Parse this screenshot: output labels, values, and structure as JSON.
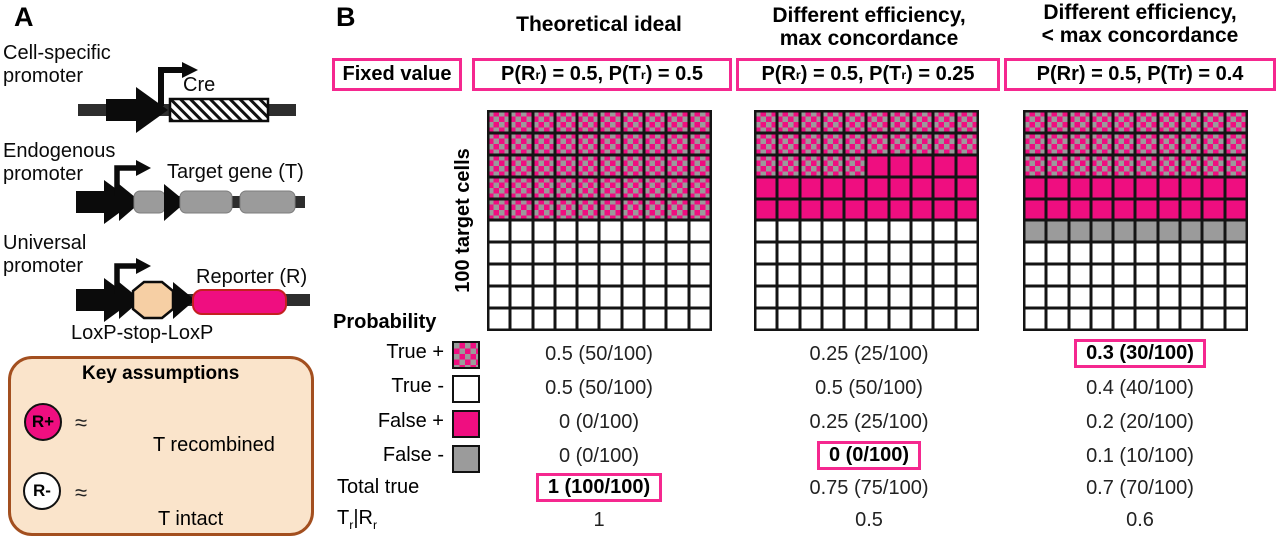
{
  "colors": {
    "pink": "#EF0E80",
    "gray": "#9B9B9B",
    "box_border": "#F5288F",
    "assumption_bg": "#FAE4CB",
    "assumption_border": "#A34F1F",
    "stop_octagon": "#F6CFA4",
    "reporter_border": "#C42020",
    "bar_dark": "#2D2D2D"
  },
  "panel_a": {
    "label": "A",
    "constructs": [
      {
        "promoter_lines": [
          "Cell-specific",
          "promoter"
        ],
        "gene_label": "Cre"
      },
      {
        "promoter_lines": [
          "Endogenous",
          "promoter"
        ],
        "gene_label": "Target gene (T)"
      },
      {
        "promoter_lines": [
          "Universal",
          "promoter"
        ],
        "gene_label": "Reporter (R)",
        "caption": "LoxP-stop-LoxP"
      }
    ],
    "key_assumptions": {
      "title": "Key assumptions",
      "rows": [
        {
          "badge": "R+",
          "approx": "≈",
          "caption": "T recombined"
        },
        {
          "badge": "R-",
          "approx": "≈",
          "caption": "T intact"
        }
      ]
    }
  },
  "panel_b": {
    "label": "B",
    "fixed_value_label": "Fixed value",
    "row_header": "100 target cells",
    "probability_label": "Probability",
    "legend_labels": [
      "True +",
      "True -",
      "False +",
      "False -",
      "Total true"
    ],
    "tr_given_rr_rich": [
      [
        "T",
        0
      ],
      [
        "r",
        1
      ],
      [
        "|R",
        0
      ],
      [
        "r",
        1
      ]
    ],
    "columns": [
      {
        "title_lines": [
          "Theoretical ideal",
          ""
        ],
        "fixed_rich": [
          [
            "P(R",
            0
          ],
          [
            "r",
            1
          ],
          [
            ") = 0.5, P(T",
            0
          ],
          [
            "r",
            1
          ],
          [
            ") = 0.5",
            0
          ]
        ],
        "grid": [
          {
            "type": "true_pos",
            "count": 50
          },
          {
            "type": "true_neg",
            "count": 50
          }
        ],
        "rows": [
          {
            "value": "0.5 (50/100)",
            "boxed": false
          },
          {
            "value": "0.5 (50/100)",
            "boxed": false
          },
          {
            "value": "0 (0/100)",
            "boxed": false
          },
          {
            "value": "0 (0/100)",
            "boxed": false
          },
          {
            "value": "1 (100/100)",
            "boxed": true
          },
          {
            "value": "1",
            "boxed": false
          }
        ]
      },
      {
        "title_lines": [
          "Different efficiency,",
          "max concordance"
        ],
        "fixed_rich": [
          [
            "P(R",
            0
          ],
          [
            "r",
            1
          ],
          [
            ") = 0.5, P(T",
            0
          ],
          [
            "r",
            1
          ],
          [
            ") = 0.25",
            0
          ]
        ],
        "grid": [
          {
            "type": "true_pos",
            "count": 25
          },
          {
            "type": "false_pos",
            "count": 25
          },
          {
            "type": "true_neg",
            "count": 50
          }
        ],
        "rows": [
          {
            "value": "0.25 (25/100)",
            "boxed": false
          },
          {
            "value": "0.5 (50/100)",
            "boxed": false
          },
          {
            "value": "0.25 (25/100)",
            "boxed": false
          },
          {
            "value": "0 (0/100)",
            "boxed": true
          },
          {
            "value": "0.75 (75/100)",
            "boxed": false
          },
          {
            "value": "0.5",
            "boxed": false
          }
        ]
      },
      {
        "title_lines": [
          "Different efficiency,",
          "< max concordance"
        ],
        "fixed_rich": [
          [
            "P(Rr) = 0.5, P(Tr) = 0.4",
            0
          ]
        ],
        "grid": [
          {
            "type": "true_pos",
            "count": 30
          },
          {
            "type": "false_pos",
            "count": 20
          },
          {
            "type": "false_neg",
            "count": 10
          },
          {
            "type": "true_neg",
            "count": 40
          }
        ],
        "rows": [
          {
            "value": "0.3 (30/100)",
            "boxed": true
          },
          {
            "value": "0.4 (40/100)",
            "boxed": false
          },
          {
            "value": "0.2 (20/100)",
            "boxed": false
          },
          {
            "value": "0.1 (10/100)",
            "boxed": false
          },
          {
            "value": "0.7 (70/100)",
            "boxed": false
          },
          {
            "value": "0.6",
            "boxed": false
          }
        ]
      }
    ]
  },
  "chart_data": {
    "type": "heatmap",
    "title": "100 target cells per condition (waffle grids)",
    "categories": [
      "True +",
      "True -",
      "False +",
      "False -"
    ],
    "series": [
      {
        "name": "Theoretical ideal",
        "values": [
          50,
          50,
          0,
          0
        ],
        "total_true": 100,
        "tr_given_rr": 1
      },
      {
        "name": "Different efficiency, max concordance",
        "values": [
          25,
          50,
          25,
          0
        ],
        "total_true": 75,
        "tr_given_rr": 0.5
      },
      {
        "name": "Different efficiency, < max concordance",
        "values": [
          30,
          40,
          20,
          10
        ],
        "total_true": 70,
        "tr_given_rr": 0.6
      }
    ]
  }
}
